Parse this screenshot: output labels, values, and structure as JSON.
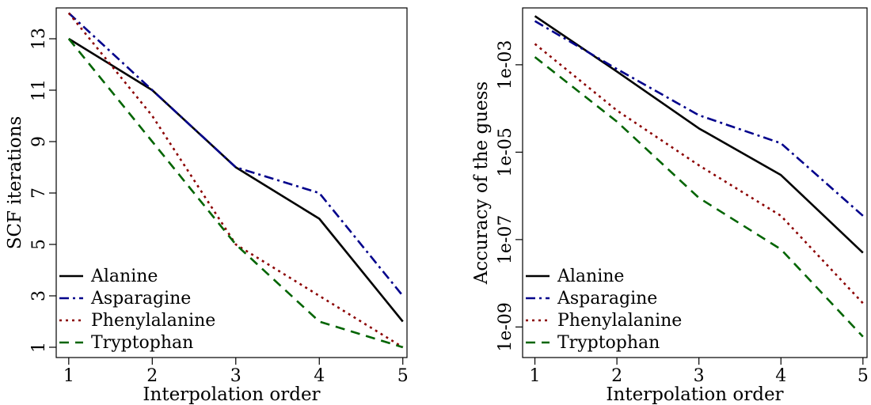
{
  "chart_data": [
    {
      "type": "line",
      "title": "",
      "xlabel": "Interpolation order",
      "ylabel": "SCF iterations",
      "x": [
        1,
        2,
        3,
        4,
        5
      ],
      "x_ticks": [
        "1",
        "2",
        "3",
        "4",
        "5"
      ],
      "xlim": [
        0.85,
        5.05
      ],
      "y_ticks": [
        "1",
        "3",
        "5",
        "7",
        "9",
        "11",
        "13"
      ],
      "ylim": [
        0.6,
        14.2
      ],
      "log_y": false,
      "grid": false,
      "legend_position": "bottom-left",
      "series": [
        {
          "name": "Alanine",
          "values": [
            13,
            11,
            8,
            6,
            2
          ],
          "color": "#000000",
          "dash": "solid"
        },
        {
          "name": "Asparagine",
          "values": [
            14,
            11,
            8,
            7,
            3
          ],
          "color": "#00008b",
          "dash": "dashdot"
        },
        {
          "name": "Phenylalanine",
          "values": [
            14,
            10,
            5,
            3,
            1
          ],
          "color": "#8b0000",
          "dash": "dotted"
        },
        {
          "name": "Tryptophan",
          "values": [
            13,
            9,
            5,
            2,
            1
          ],
          "color": "#006400",
          "dash": "dashed"
        }
      ]
    },
    {
      "type": "line",
      "title": "",
      "xlabel": "Interpolation order",
      "ylabel": "Accuracy of the guess",
      "x": [
        1,
        2,
        3,
        4,
        5
      ],
      "x_ticks": [
        "1",
        "2",
        "3",
        "4",
        "5"
      ],
      "xlim": [
        0.85,
        5.05
      ],
      "y_ticks": [
        "1e-09",
        "1e-07",
        "1e-05",
        "1e-03"
      ],
      "y_tick_values": [
        1e-09,
        1e-07,
        1e-05,
        0.001
      ],
      "ylim": [
        2e-10,
        0.02
      ],
      "log_y": true,
      "grid": false,
      "legend_position": "bottom-left",
      "series": [
        {
          "name": "Alanine",
          "values": [
            0.013,
            0.0007,
            3.5e-05,
            3e-06,
            5e-08
          ],
          "color": "#000000",
          "dash": "solid"
        },
        {
          "name": "Asparagine",
          "values": [
            0.01,
            0.0008,
            7e-05,
            1.6e-05,
            3.5e-07
          ],
          "color": "#00008b",
          "dash": "dashdot"
        },
        {
          "name": "Phenylalanine",
          "values": [
            0.003,
            9e-05,
            5e-06,
            3.5e-07,
            3.5e-09
          ],
          "color": "#8b0000",
          "dash": "dotted"
        },
        {
          "name": "Tryptophan",
          "values": [
            0.0015,
            5e-05,
            9e-07,
            6e-08,
            6e-10
          ],
          "color": "#006400",
          "dash": "dashed"
        }
      ]
    }
  ]
}
